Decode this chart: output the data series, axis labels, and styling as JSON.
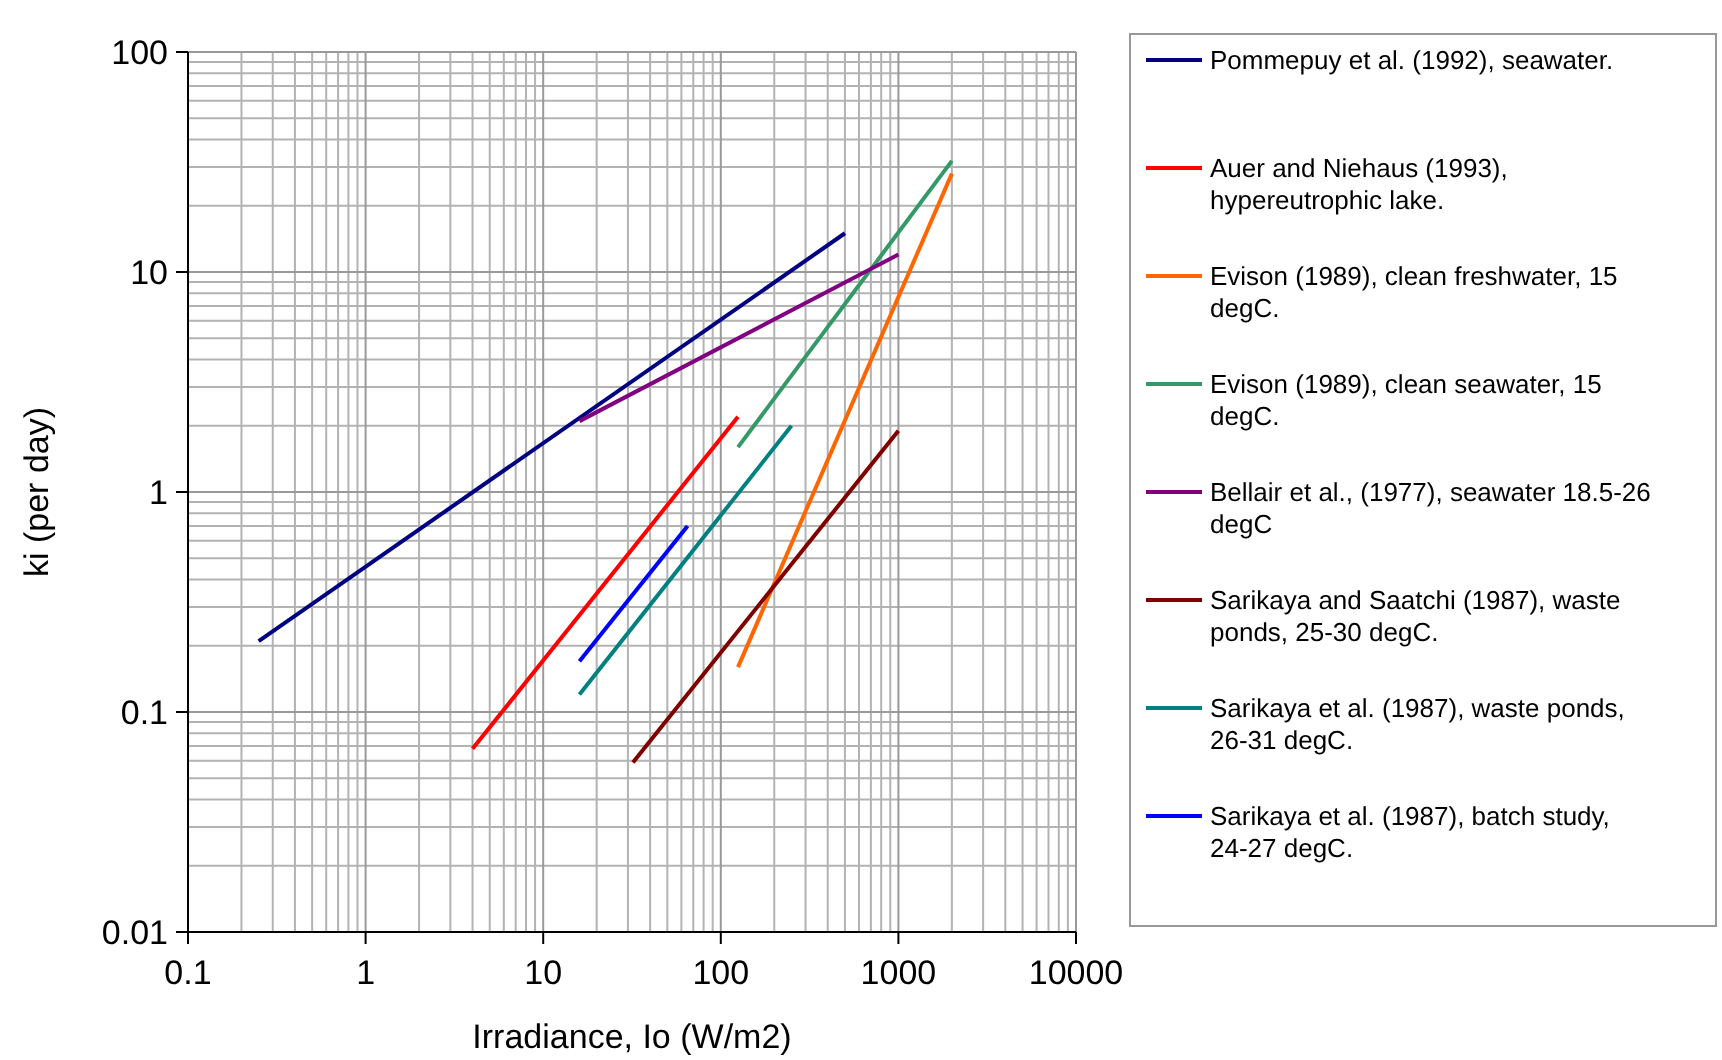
{
  "chart_data": {
    "type": "line",
    "xlabel": "Irradiance, Io (W/m2)",
    "ylabel": "ki (per day)",
    "log": "xy",
    "grid": true,
    "legend": "right",
    "marker": "none",
    "line_style": "solid",
    "xlim": [
      0.1,
      10000
    ],
    "xticks": [
      0.1,
      1,
      10,
      100,
      1000,
      10000
    ],
    "ylim": [
      0.01,
      100
    ],
    "yticks": [
      0.01,
      0.1,
      1,
      10,
      100
    ],
    "series": [
      {
        "name": "Pommepuy et al. (1992), seawater.",
        "color": "#000080",
        "x": [
          0.25,
          500
        ],
        "values": [
          0.21,
          15
        ]
      },
      {
        "name": "Auer and Niehaus (1993), hypereutrophic lake.",
        "color": "#ff0000",
        "x": [
          4,
          125
        ],
        "values": [
          0.068,
          2.2
        ]
      },
      {
        "name": "Evison (1989), clean freshwater, 15 degC.",
        "color": "#ff6600",
        "x": [
          125,
          2000
        ],
        "values": [
          0.16,
          28
        ]
      },
      {
        "name": "Evison (1989), clean seawater, 15 degC.",
        "color": "#339966",
        "x": [
          125,
          2000
        ],
        "values": [
          1.6,
          32
        ]
      },
      {
        "name": "Bellair et al., (1977), seawater 18.5-26 degC",
        "color": "#800080",
        "x": [
          16,
          1000
        ],
        "values": [
          2.1,
          12
        ]
      },
      {
        "name": "Sarikaya and Saatchi (1987), waste ponds, 25-30 degC.",
        "color": "#800000",
        "x": [
          32,
          1000
        ],
        "values": [
          0.059,
          1.9
        ]
      },
      {
        "name": "Sarikaya et al. (1987), waste ponds, 26-31 degC.",
        "color": "#008080",
        "x": [
          16,
          250
        ],
        "values": [
          0.12,
          2
        ]
      },
      {
        "name": "Sarikaya et al. (1987), batch study, 24-27 degC.",
        "color": "#0000ff",
        "x": [
          16,
          65
        ],
        "values": [
          0.17,
          0.7
        ]
      }
    ]
  }
}
